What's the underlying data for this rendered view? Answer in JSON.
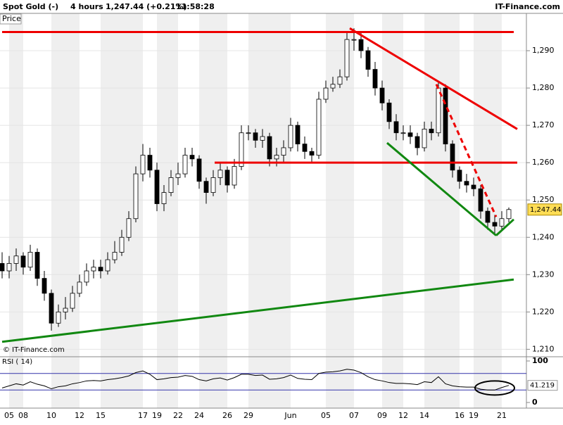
{
  "chart_data": {
    "type": "candlestick",
    "title": "Spot Gold (-)",
    "interval": "4 hours",
    "quote": "1,247.44 (+0.21%)",
    "time": "11:58:28",
    "brand": "IT-Finance.com",
    "price_label": "Price",
    "copyright": "© IT-Finance.com",
    "x": [
      null,
      "05",
      null,
      "08",
      null,
      null,
      null,
      "10",
      null,
      null,
      null,
      "12",
      null,
      null,
      "15",
      null,
      null,
      null,
      null,
      null,
      "17",
      null,
      "19",
      null,
      null,
      "22",
      null,
      null,
      "24",
      null,
      null,
      null,
      "26",
      null,
      null,
      "29",
      null,
      null,
      null,
      null,
      null,
      "Jun",
      null,
      null,
      null,
      null,
      "05",
      null,
      null,
      null,
      "07",
      null,
      null,
      null,
      "09",
      null,
      null,
      "12",
      null,
      null,
      "14",
      null,
      null,
      null,
      null,
      "16",
      null,
      "19",
      null,
      null,
      null,
      "21",
      null
    ],
    "open": [
      1233,
      1231,
      1233,
      1235,
      1232,
      1236,
      1229,
      1225,
      1217,
      1220,
      1221,
      1225,
      1228,
      1231,
      1232,
      1231,
      1234,
      1236,
      1240,
      1245,
      1257,
      1262,
      1258,
      1249,
      1252,
      1256,
      1257,
      1262,
      1261,
      1255,
      1252,
      1256,
      1258,
      1254,
      1259,
      1268,
      1268,
      1266,
      1267,
      1261,
      1262,
      1264,
      1270,
      1265,
      1263,
      1262,
      1277,
      1280,
      1281,
      1283,
      1293,
      1293,
      1290,
      1285,
      1280,
      1276,
      1271,
      1268,
      1268,
      1267,
      1264,
      1269,
      1268,
      1280,
      1265,
      1258,
      1255,
      1254,
      1253,
      1247,
      1244,
      1243,
      1245
    ],
    "high": [
      1236,
      1235,
      1237,
      1236,
      1238,
      1237,
      1231,
      1226,
      1222,
      1224,
      1227,
      1230,
      1233,
      1234,
      1234,
      1236,
      1239,
      1242,
      1247,
      1259,
      1265,
      1264,
      1260,
      1254,
      1258,
      1260,
      1264,
      1264,
      1262,
      1256,
      1258,
      1260,
      1259,
      1261,
      1270,
      1270,
      1269,
      1269,
      1268,
      1264,
      1266,
      1272,
      1271,
      1267,
      1264,
      1279,
      1282,
      1283,
      1285,
      1295,
      1296,
      1295,
      1291,
      1287,
      1282,
      1277,
      1273,
      1270,
      1270,
      1268,
      1271,
      1271,
      1282,
      1281,
      1266,
      1259,
      1257,
      1256,
      1254,
      1248,
      1246,
      1247,
      1248
    ],
    "low": [
      1229,
      1229,
      1231,
      1230,
      1231,
      1227,
      1223,
      1215,
      1216,
      1218,
      1220,
      1224,
      1227,
      1229,
      1229,
      1230,
      1233,
      1235,
      1239,
      1244,
      1255,
      1256,
      1247,
      1247,
      1251,
      1254,
      1256,
      1259,
      1253,
      1249,
      1251,
      1254,
      1252,
      1253,
      1258,
      1266,
      1264,
      1264,
      1259,
      1259,
      1260,
      1263,
      1263,
      1261,
      1260,
      1261,
      1276,
      1279,
      1280,
      1282,
      1290,
      1288,
      1283,
      1278,
      1274,
      1269,
      1266,
      1266,
      1265,
      1262,
      1263,
      1266,
      1267,
      1263,
      1256,
      1253,
      1252,
      1251,
      1245,
      1242,
      1241,
      1242,
      1244
    ],
    "close": [
      1231,
      1233,
      1235,
      1232,
      1236,
      1229,
      1225,
      1217,
      1220,
      1221,
      1225,
      1228,
      1231,
      1232,
      1231,
      1234,
      1236,
      1240,
      1245,
      1257,
      1262,
      1258,
      1249,
      1252,
      1256,
      1257,
      1262,
      1261,
      1255,
      1252,
      1256,
      1258,
      1254,
      1259,
      1268,
      1268,
      1266,
      1267,
      1261,
      1262,
      1264,
      1270,
      1265,
      1263,
      1262,
      1277,
      1280,
      1281,
      1283,
      1293,
      1293,
      1290,
      1285,
      1280,
      1276,
      1271,
      1268,
      1268,
      1267,
      1264,
      1269,
      1268,
      1280,
      1265,
      1258,
      1255,
      1254,
      1253,
      1247,
      1244,
      1243,
      1245,
      1247.44
    ],
    "up_color": "#ffffff",
    "down_color": "#000000",
    "ylim": [
      1208,
      1300
    ],
    "yticks": [
      {
        "value": 1210,
        "label": "1,210"
      },
      {
        "value": 1220,
        "label": "1,220"
      },
      {
        "value": 1230,
        "label": "1,230"
      },
      {
        "value": 1240,
        "label": "1,240"
      },
      {
        "value": 1250,
        "label": "1,250"
      },
      {
        "value": 1260,
        "label": "1,260"
      },
      {
        "value": 1270,
        "label": "1,270"
      },
      {
        "value": 1280,
        "label": "1,280"
      },
      {
        "value": 1290,
        "label": "1,290"
      }
    ],
    "last_price": {
      "value": 1247.44,
      "label": "1,247.44"
    },
    "trendlines": [
      {
        "color": "#ee0000",
        "dash": false,
        "from": [
          0,
          1295
        ],
        "to": [
          72.7,
          1295
        ]
      },
      {
        "color": "#ee0000",
        "dash": false,
        "from": [
          49.4,
          1296
        ],
        "to": [
          73.2,
          1269
        ]
      },
      {
        "color": "#ee0000",
        "dash": true,
        "from": [
          61.7,
          1281
        ],
        "to": [
          70.2,
          1245.5
        ]
      },
      {
        "color": "#ee0000",
        "dash": false,
        "from": [
          30.2,
          1260
        ],
        "to": [
          73.2,
          1260
        ]
      },
      {
        "color": "#118811",
        "dash": false,
        "from": [
          0,
          1212
        ],
        "to": [
          72.7,
          1228.7
        ]
      },
      {
        "color": "#118811",
        "dash": false,
        "from": [
          54.7,
          1265.3
        ],
        "to": [
          70.2,
          1240.5
        ]
      },
      {
        "color": "#118811",
        "dash": false,
        "from": [
          70.2,
          1240.5
        ],
        "to": [
          72.7,
          1244.8
        ]
      }
    ],
    "rsi": {
      "label": "RSI ( 14)",
      "values": [
        35,
        40,
        45,
        42,
        50,
        44,
        40,
        33,
        38,
        40,
        45,
        48,
        52,
        53,
        52,
        55,
        57,
        60,
        64,
        72,
        76,
        68,
        55,
        57,
        60,
        61,
        65,
        63,
        55,
        52,
        57,
        59,
        54,
        60,
        68,
        68,
        65,
        66,
        56,
        57,
        60,
        66,
        58,
        56,
        55,
        70,
        73,
        74,
        76,
        80,
        78,
        72,
        62,
        55,
        52,
        48,
        46,
        46,
        45,
        43,
        50,
        48,
        62,
        45,
        40,
        38,
        37,
        37,
        32,
        30,
        30,
        36,
        41.219
      ],
      "last_label": "41.219",
      "ylim": [
        0,
        100
      ],
      "yticks": [
        0,
        100
      ],
      "levels": [
        30,
        70
      ]
    }
  }
}
